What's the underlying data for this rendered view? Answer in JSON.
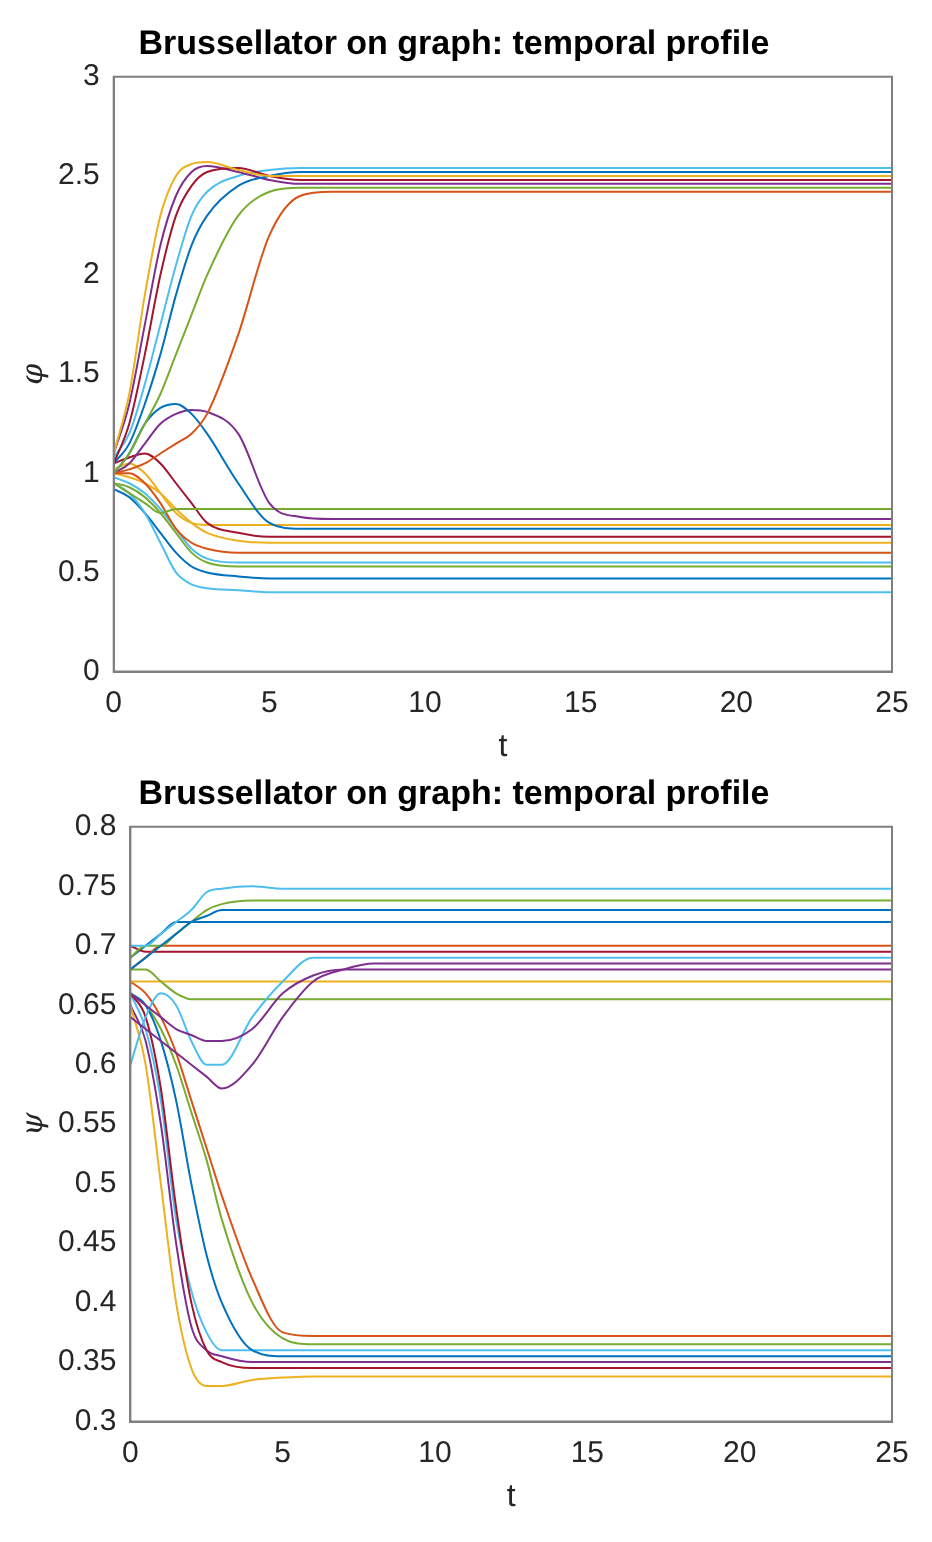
{
  "chart_data": [
    {
      "type": "line",
      "title": "Brussellator on graph: temporal profile",
      "xlabel": "t",
      "ylabel": "φ",
      "xlim": [
        0,
        25
      ],
      "xticks": [
        0,
        5,
        10,
        15,
        20,
        25
      ],
      "ylim": [
        0,
        3
      ],
      "yticks": [
        0,
        0.5,
        1,
        1.5,
        2,
        2.5,
        3
      ],
      "grid": false,
      "legend": false,
      "marker": "none",
      "line_style": "solid",
      "x": [
        0,
        0.5,
        1,
        1.5,
        2,
        2.5,
        3,
        4,
        5,
        6,
        7,
        8,
        10,
        25
      ],
      "series": [
        {
          "color": "#edb120",
          "values": [
            1.1,
            1.4,
            1.9,
            2.3,
            2.5,
            2.56,
            2.57,
            2.53,
            2.5,
            2.5,
            2.5,
            2.5,
            2.5,
            2.5
          ]
        },
        {
          "color": "#a2142f",
          "values": [
            1.05,
            1.25,
            1.6,
            2.0,
            2.3,
            2.45,
            2.52,
            2.54,
            2.5,
            2.48,
            2.48,
            2.48,
            2.48,
            2.48
          ]
        },
        {
          "color": "#0072bd",
          "values": [
            1.05,
            1.15,
            1.35,
            1.6,
            1.9,
            2.15,
            2.3,
            2.45,
            2.5,
            2.52,
            2.52,
            2.52,
            2.52,
            2.52
          ]
        },
        {
          "color": "#77ac30",
          "values": [
            1.0,
            1.1,
            1.25,
            1.4,
            1.6,
            1.8,
            2.0,
            2.3,
            2.42,
            2.44,
            2.44,
            2.44,
            2.44,
            2.44
          ]
        },
        {
          "color": "#d95319",
          "values": [
            1.0,
            1.02,
            1.05,
            1.1,
            1.15,
            1.2,
            1.3,
            1.7,
            2.2,
            2.4,
            2.42,
            2.42,
            2.42,
            2.42
          ]
        },
        {
          "color": "#7e2f8e",
          "values": [
            1.1,
            1.35,
            1.75,
            2.15,
            2.4,
            2.52,
            2.55,
            2.52,
            2.48,
            2.46,
            2.46,
            2.46,
            2.46,
            2.46
          ]
        },
        {
          "color": "#4dbeee",
          "values": [
            1.08,
            1.2,
            1.45,
            1.75,
            2.05,
            2.3,
            2.42,
            2.5,
            2.53,
            2.54,
            2.54,
            2.54,
            2.54,
            2.54
          ]
        },
        {
          "color": "#0072bd",
          "values": [
            1.0,
            1.1,
            1.25,
            1.33,
            1.35,
            1.3,
            1.2,
            0.95,
            0.75,
            0.72,
            0.72,
            0.72,
            0.72,
            0.72
          ]
        },
        {
          "color": "#7e2f8e",
          "values": [
            1.0,
            1.05,
            1.15,
            1.25,
            1.3,
            1.32,
            1.31,
            1.2,
            0.85,
            0.78,
            0.77,
            0.77,
            0.77,
            0.77
          ]
        },
        {
          "color": "#77ac30",
          "values": [
            0.95,
            0.9,
            0.85,
            0.8,
            0.82,
            0.82,
            0.82,
            0.82,
            0.82,
            0.82,
            0.82,
            0.82,
            0.82,
            0.82
          ]
        },
        {
          "color": "#4dbeee",
          "values": [
            0.95,
            0.9,
            0.8,
            0.65,
            0.5,
            0.44,
            0.42,
            0.41,
            0.4,
            0.4,
            0.4,
            0.4,
            0.4,
            0.4
          ]
        },
        {
          "color": "#d95319",
          "values": [
            1.0,
            1.0,
            0.95,
            0.85,
            0.72,
            0.65,
            0.62,
            0.6,
            0.6,
            0.6,
            0.6,
            0.6,
            0.6,
            0.6
          ]
        },
        {
          "color": "#a2142f",
          "values": [
            1.05,
            1.08,
            1.1,
            1.05,
            0.95,
            0.85,
            0.75,
            0.7,
            0.68,
            0.68,
            0.68,
            0.68,
            0.68,
            0.68
          ]
        },
        {
          "color": "#0072bd",
          "values": [
            0.92,
            0.88,
            0.8,
            0.7,
            0.6,
            0.53,
            0.5,
            0.48,
            0.47,
            0.47,
            0.47,
            0.47,
            0.47,
            0.47
          ]
        },
        {
          "color": "#edb120",
          "values": [
            1.0,
            0.98,
            0.95,
            0.9,
            0.82,
            0.75,
            0.7,
            0.66,
            0.65,
            0.65,
            0.65,
            0.65,
            0.65,
            0.65
          ]
        },
        {
          "color": "#77ac30",
          "values": [
            0.95,
            0.93,
            0.88,
            0.8,
            0.7,
            0.6,
            0.55,
            0.53,
            0.53,
            0.53,
            0.53,
            0.53,
            0.53,
            0.53
          ]
        },
        {
          "color": "#4dbeee",
          "values": [
            0.98,
            0.95,
            0.9,
            0.82,
            0.72,
            0.62,
            0.57,
            0.55,
            0.55,
            0.55,
            0.55,
            0.55,
            0.55,
            0.55
          ]
        },
        {
          "color": "#edb120",
          "values": [
            1.02,
            1.05,
            1.0,
            0.9,
            0.8,
            0.75,
            0.74,
            0.74,
            0.74,
            0.74,
            0.74,
            0.74,
            0.74,
            0.74
          ]
        }
      ]
    },
    {
      "type": "line",
      "title": "Brussellator on graph: temporal profile",
      "xlabel": "t",
      "ylabel": "ψ",
      "xlim": [
        0,
        25
      ],
      "xticks": [
        0,
        5,
        10,
        15,
        20,
        25
      ],
      "ylim": [
        0.3,
        0.8
      ],
      "yticks": [
        0.3,
        0.35,
        0.4,
        0.45,
        0.5,
        0.55,
        0.6,
        0.65,
        0.7,
        0.75,
        0.8
      ],
      "grid": false,
      "legend": false,
      "marker": "none",
      "line_style": "solid",
      "x": [
        0,
        0.5,
        1,
        1.5,
        2,
        2.5,
        3,
        4,
        5,
        6,
        7,
        8,
        10,
        25
      ],
      "series": [
        {
          "color": "#4dbeee",
          "values": [
            0.7,
            0.7,
            0.71,
            0.72,
            0.73,
            0.745,
            0.748,
            0.75,
            0.748,
            0.748,
            0.748,
            0.748,
            0.748,
            0.748
          ]
        },
        {
          "color": "#0072bd",
          "values": [
            0.68,
            0.69,
            0.7,
            0.71,
            0.72,
            0.725,
            0.73,
            0.73,
            0.73,
            0.73,
            0.73,
            0.73,
            0.73,
            0.73
          ]
        },
        {
          "color": "#77ac30",
          "values": [
            0.69,
            0.7,
            0.7,
            0.71,
            0.72,
            0.73,
            0.735,
            0.738,
            0.738,
            0.738,
            0.738,
            0.738,
            0.738,
            0.738
          ]
        },
        {
          "color": "#7e2f8e",
          "values": [
            0.66,
            0.65,
            0.64,
            0.63,
            0.625,
            0.62,
            0.62,
            0.63,
            0.66,
            0.675,
            0.68,
            0.68,
            0.68,
            0.68
          ]
        },
        {
          "color": "#7e2f8e",
          "values": [
            0.64,
            0.63,
            0.62,
            0.61,
            0.6,
            0.59,
            0.58,
            0.6,
            0.64,
            0.67,
            0.68,
            0.685,
            0.685,
            0.685
          ]
        },
        {
          "color": "#4dbeee",
          "values": [
            0.6,
            0.64,
            0.66,
            0.65,
            0.62,
            0.6,
            0.6,
            0.64,
            0.67,
            0.69,
            0.69,
            0.69,
            0.69,
            0.69
          ]
        },
        {
          "color": "#77ac30",
          "values": [
            0.68,
            0.68,
            0.67,
            0.66,
            0.655,
            0.655,
            0.655,
            0.655,
            0.655,
            0.655,
            0.655,
            0.655,
            0.655,
            0.655
          ]
        },
        {
          "color": "#d95319",
          "values": [
            0.68,
            0.69,
            0.7,
            0.7,
            0.7,
            0.7,
            0.7,
            0.7,
            0.7,
            0.7,
            0.7,
            0.7,
            0.7,
            0.7
          ]
        },
        {
          "color": "#a2142f",
          "values": [
            0.7,
            0.695,
            0.695,
            0.695,
            0.695,
            0.695,
            0.695,
            0.695,
            0.695,
            0.695,
            0.695,
            0.695,
            0.695,
            0.695
          ]
        },
        {
          "color": "#edb120",
          "values": [
            0.67,
            0.67,
            0.67,
            0.67,
            0.67,
            0.67,
            0.67,
            0.67,
            0.67,
            0.67,
            0.67,
            0.67,
            0.67,
            0.67
          ]
        },
        {
          "color": "#0072bd",
          "values": [
            0.69,
            0.7,
            0.71,
            0.72,
            0.72,
            0.72,
            0.72,
            0.72,
            0.72,
            0.72,
            0.72,
            0.72,
            0.72,
            0.72
          ]
        },
        {
          "color": "#edb120",
          "values": [
            0.65,
            0.6,
            0.5,
            0.4,
            0.345,
            0.33,
            0.33,
            0.335,
            0.337,
            0.338,
            0.338,
            0.338,
            0.338,
            0.338
          ]
        },
        {
          "color": "#a2142f",
          "values": [
            0.66,
            0.64,
            0.58,
            0.48,
            0.4,
            0.36,
            0.35,
            0.345,
            0.345,
            0.345,
            0.345,
            0.345,
            0.345,
            0.345
          ]
        },
        {
          "color": "#0072bd",
          "values": [
            0.66,
            0.65,
            0.62,
            0.57,
            0.5,
            0.44,
            0.4,
            0.36,
            0.355,
            0.355,
            0.355,
            0.355,
            0.355,
            0.355
          ]
        },
        {
          "color": "#d95319",
          "values": [
            0.67,
            0.66,
            0.64,
            0.61,
            0.57,
            0.53,
            0.49,
            0.42,
            0.375,
            0.372,
            0.372,
            0.372,
            0.372,
            0.372
          ]
        },
        {
          "color": "#77ac30",
          "values": [
            0.66,
            0.65,
            0.63,
            0.6,
            0.56,
            0.52,
            0.47,
            0.4,
            0.37,
            0.365,
            0.365,
            0.365,
            0.365,
            0.365
          ]
        },
        {
          "color": "#7e2f8e",
          "values": [
            0.65,
            0.62,
            0.55,
            0.45,
            0.38,
            0.36,
            0.355,
            0.35,
            0.35,
            0.35,
            0.35,
            0.35,
            0.35,
            0.35
          ]
        },
        {
          "color": "#4dbeee",
          "values": [
            0.66,
            0.63,
            0.57,
            0.47,
            0.41,
            0.375,
            0.36,
            0.36,
            0.36,
            0.36,
            0.36,
            0.36,
            0.36,
            0.36
          ]
        }
      ]
    }
  ]
}
